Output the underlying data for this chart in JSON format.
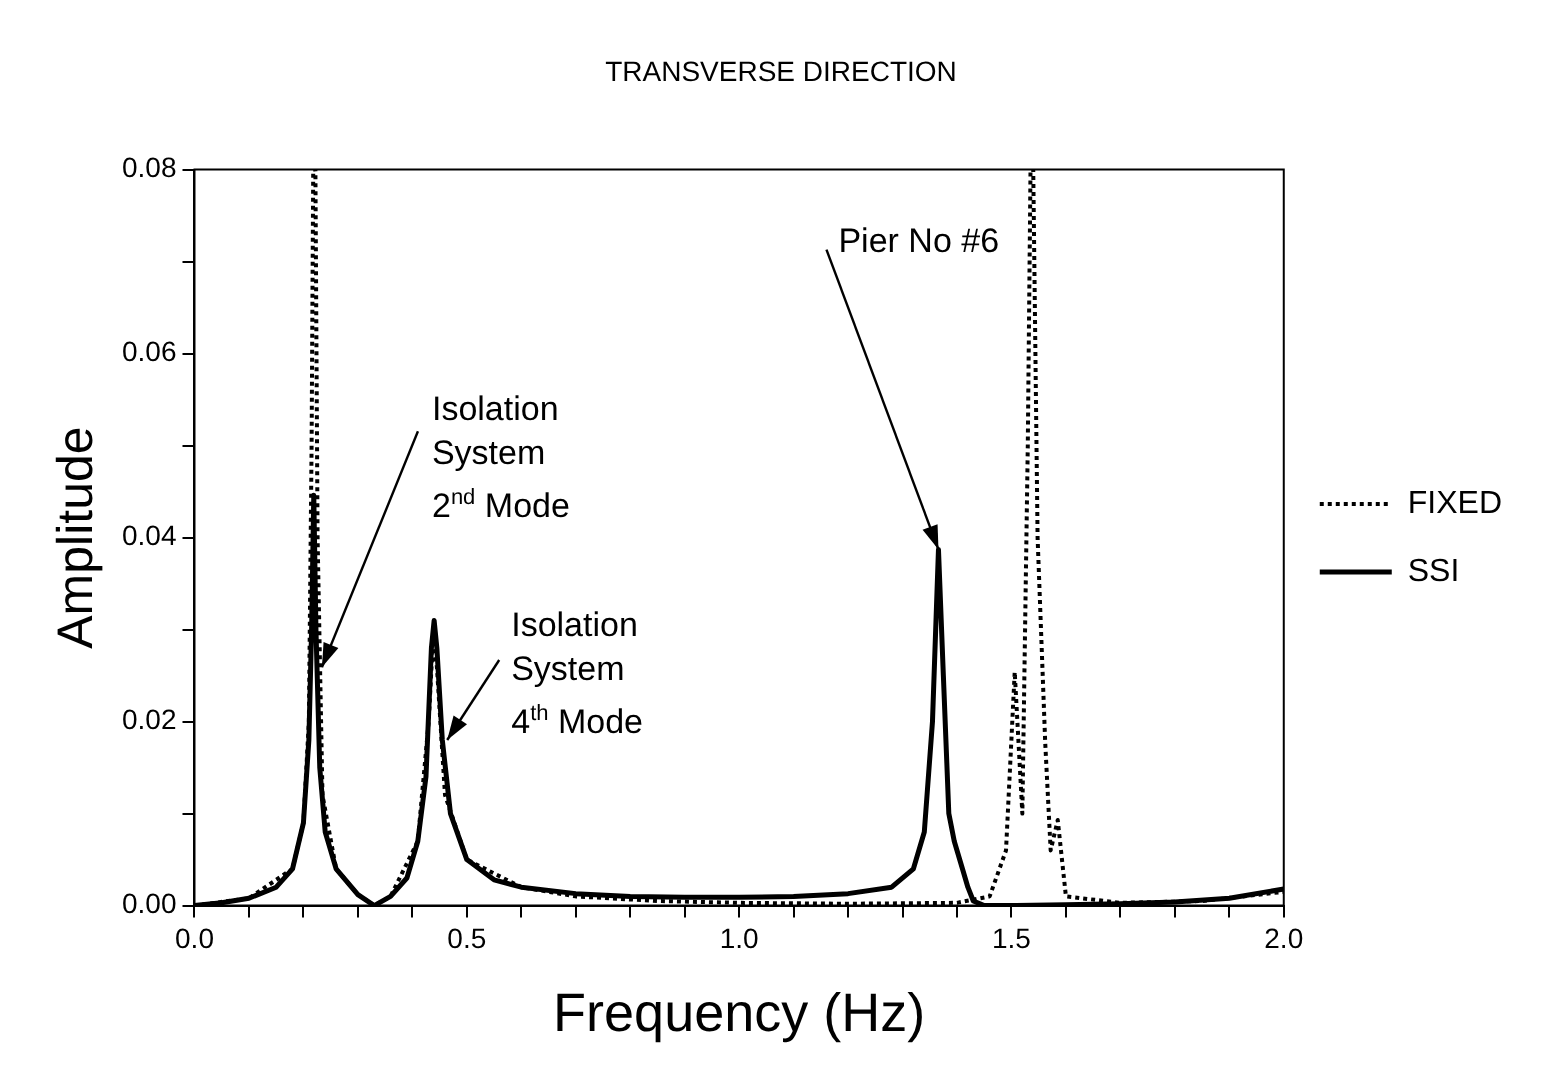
{
  "chart_data": {
    "type": "line",
    "title": "TRANSVERSE DIRECTION",
    "xlabel": "Frequency (Hz)",
    "ylabel": "Amplitude",
    "xlim": [
      0,
      2
    ],
    "xticks": [
      {
        "value": 0,
        "label": "0.0"
      },
      {
        "value": 0.1,
        "label": null
      },
      {
        "value": 0.2,
        "label": null
      },
      {
        "value": 0.3,
        "label": null
      },
      {
        "value": 0.4,
        "label": null
      },
      {
        "value": 0.5,
        "label": "0.5"
      },
      {
        "value": 0.6,
        "label": null
      },
      {
        "value": 0.7,
        "label": null
      },
      {
        "value": 0.8,
        "label": null
      },
      {
        "value": 0.9,
        "label": null
      },
      {
        "value": 1,
        "label": "1.0"
      },
      {
        "value": 1.1,
        "label": null
      },
      {
        "value": 1.2,
        "label": null
      },
      {
        "value": 1.3,
        "label": null
      },
      {
        "value": 1.4,
        "label": null
      },
      {
        "value": 1.5,
        "label": "1.5"
      },
      {
        "value": 1.6,
        "label": null
      },
      {
        "value": 1.7,
        "label": null
      },
      {
        "value": 1.8,
        "label": null
      },
      {
        "value": 1.9,
        "label": null
      },
      {
        "value": 2,
        "label": "2.0"
      }
    ],
    "ylim": [
      0,
      0.08
    ],
    "yticks": [
      {
        "value": 0,
        "label": "0.00"
      },
      {
        "value": 0.01,
        "label": null
      },
      {
        "value": 0.02,
        "label": "0.02"
      },
      {
        "value": 0.03,
        "label": null
      },
      {
        "value": 0.04,
        "label": "0.04"
      },
      {
        "value": 0.05,
        "label": null
      },
      {
        "value": 0.06,
        "label": "0.06"
      },
      {
        "value": 0.07,
        "label": null
      },
      {
        "value": 0.08,
        "label": "0.08"
      }
    ],
    "grid": false,
    "legend": "right",
    "marker": "none",
    "series": [
      {
        "name": "FIXED",
        "color": "#000000",
        "line_style": "dotted",
        "x": [
          0,
          0.1,
          0.18,
          0.2,
          0.21,
          0.215,
          0.218,
          0.222,
          0.226,
          0.235,
          0.26,
          0.3,
          0.33,
          0.36,
          0.41,
          0.43,
          0.437,
          0.445,
          0.46,
          0.5,
          0.6,
          0.7,
          0.85,
          1.0,
          1.2,
          1.4,
          1.46,
          1.49,
          1.506,
          1.52,
          1.53,
          1.535,
          1.54,
          1.548,
          1.562,
          1.572,
          1.585,
          1.6,
          1.7,
          1.85,
          2.0
        ],
        "values": [
          0,
          0.0008,
          0.004,
          0.009,
          0.02,
          0.05,
          0.08,
          0.08,
          0.04,
          0.012,
          0.004,
          0.0012,
          0,
          0.001,
          0.007,
          0.02,
          0.028,
          0.026,
          0.012,
          0.005,
          0.002,
          0.001,
          0.0005,
          0.0003,
          0.0002,
          0.0003,
          0.001,
          0.006,
          0.0254,
          0.01,
          0.05,
          0.08,
          0.08,
          0.04,
          0.0177,
          0.006,
          0.0093,
          0.001,
          0.0003,
          0.0005,
          0.0015
        ]
      },
      {
        "name": "SSI",
        "color": "#000000",
        "line_style": "solid",
        "x": [
          0,
          0.05,
          0.1,
          0.15,
          0.18,
          0.2,
          0.21,
          0.215,
          0.219,
          0.223,
          0.23,
          0.24,
          0.26,
          0.3,
          0.33,
          0.36,
          0.39,
          0.41,
          0.425,
          0.435,
          0.44,
          0.445,
          0.455,
          0.47,
          0.5,
          0.55,
          0.6,
          0.7,
          0.8,
          0.9,
          1.0,
          1.1,
          1.2,
          1.28,
          1.32,
          1.34,
          1.355,
          1.366,
          1.375,
          1.385,
          1.395,
          1.41,
          1.42,
          1.43,
          1.45,
          1.5,
          1.6,
          1.7,
          1.8,
          1.9,
          2.0
        ],
        "values": [
          0,
          0.0003,
          0.0008,
          0.002,
          0.004,
          0.009,
          0.018,
          0.03,
          0.0446,
          0.03,
          0.015,
          0.008,
          0.004,
          0.0012,
          0,
          0.001,
          0.003,
          0.007,
          0.014,
          0.028,
          0.031,
          0.028,
          0.018,
          0.01,
          0.005,
          0.0028,
          0.002,
          0.0013,
          0.001,
          0.0009,
          0.0009,
          0.001,
          0.0013,
          0.002,
          0.004,
          0.008,
          0.02,
          0.0387,
          0.025,
          0.01,
          0.007,
          0.004,
          0.002,
          0.0005,
          0,
          0,
          0.0001,
          0.0002,
          0.0004,
          0.0008,
          0.0018
        ]
      }
    ],
    "annotations": [
      {
        "text": "Isolation\nSystem\n2$^{nd}$ Mode",
        "x": 0.234,
        "y": 0.0259
      },
      {
        "text": "Isolation\nSystem\n4$^{th}$ Mode",
        "x": 0.464,
        "y": 0.018
      },
      {
        "text": "Pier No #6",
        "x": 1.366,
        "y": 0.0387
      }
    ]
  }
}
